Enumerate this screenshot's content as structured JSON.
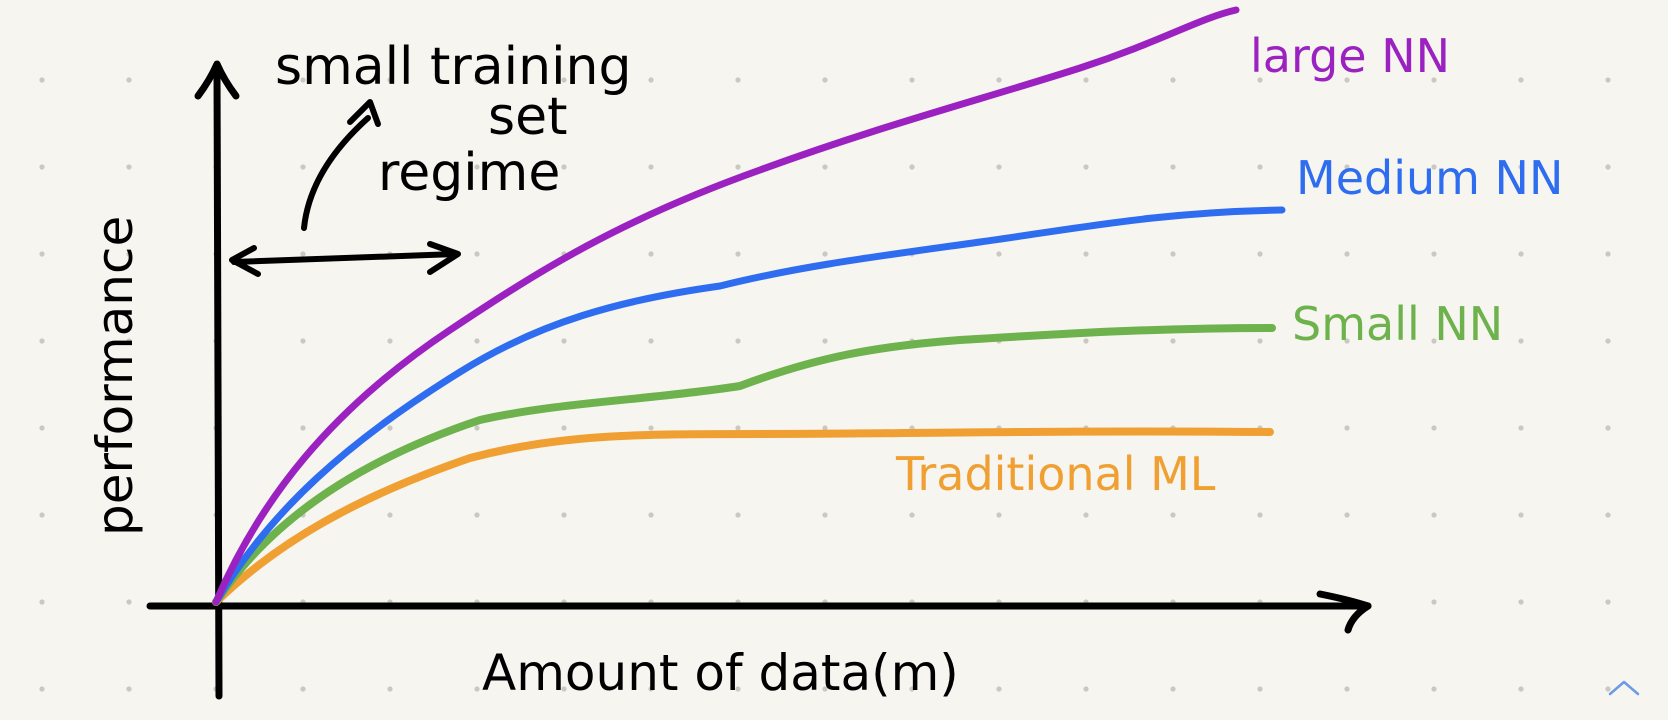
{
  "annotation": {
    "line1": "small training",
    "line2": "set",
    "line3": "regime"
  },
  "axes": {
    "ylabel": "performance",
    "xlabel": "Amount of data(m)"
  },
  "series": [
    {
      "id": "large",
      "name": "large NN",
      "color": "#9b22c0"
    },
    {
      "id": "medium",
      "name": "Medium NN",
      "color": "#2f6df0"
    },
    {
      "id": "small",
      "name": "Small NN",
      "color": "#6db24c"
    },
    {
      "id": "traditional",
      "name": "Traditional ML",
      "color": "#f0a033"
    }
  ],
  "colors": {
    "ink": "#000000",
    "paper": "#f6f5f0",
    "dots": "#c9c8c2",
    "scroll_icon": "#6a9ae8"
  },
  "icons": {
    "scroll": "chevron-up-icon"
  }
}
